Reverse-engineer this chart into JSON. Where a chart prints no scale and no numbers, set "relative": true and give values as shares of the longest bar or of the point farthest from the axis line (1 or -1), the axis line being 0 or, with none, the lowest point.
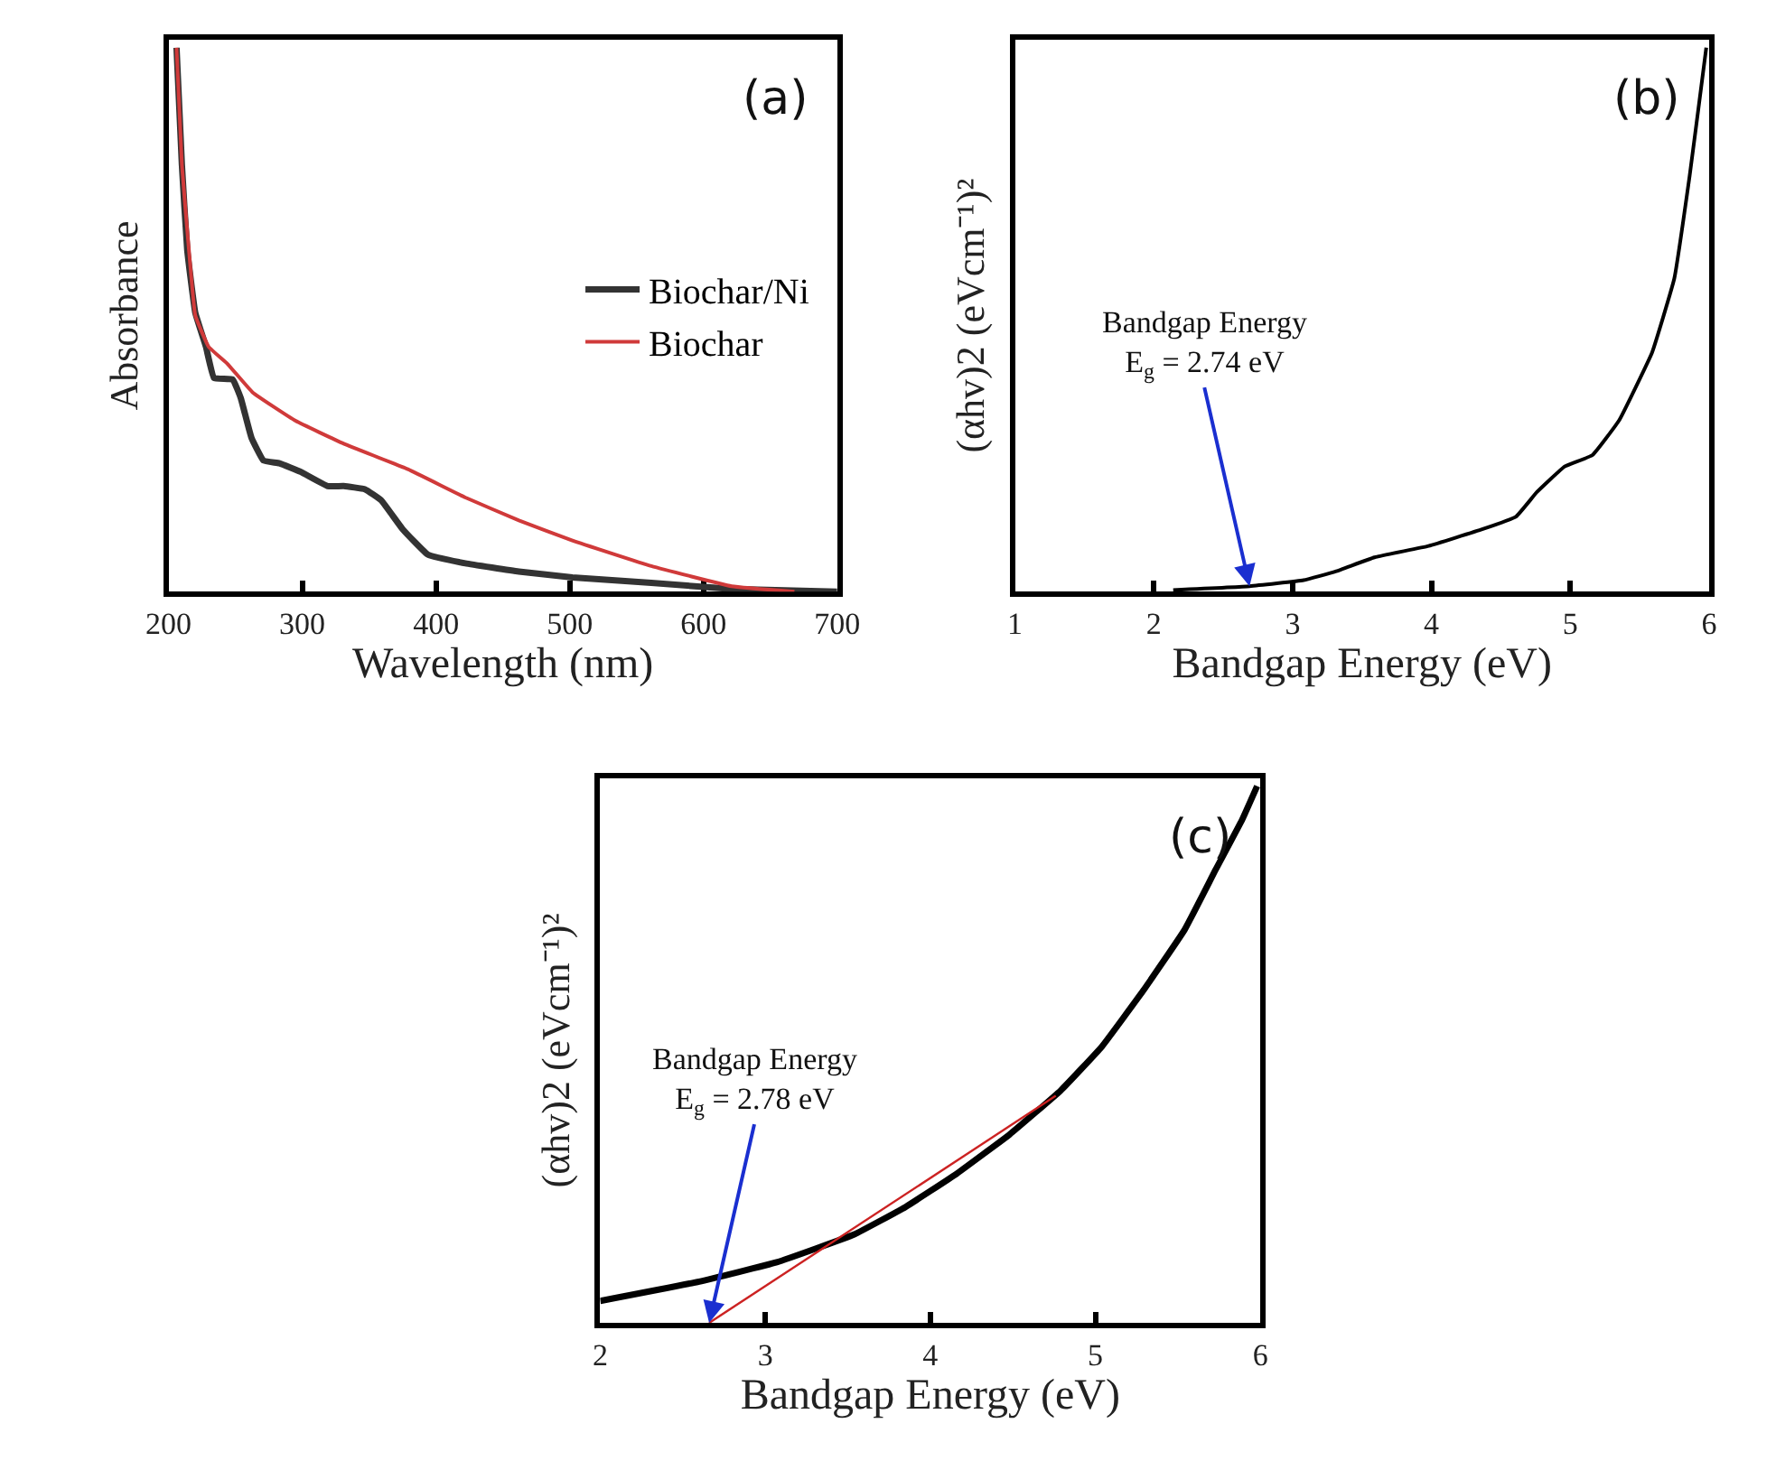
{
  "chart_data": [
    {
      "type": "line",
      "xlabel": "Wavelength (nm)",
      "ylabel": "Absorbance",
      "relative": true,
      "xlim": [
        200,
        700
      ],
      "xticks": [
        200,
        300,
        400,
        500,
        600,
        700
      ],
      "legend": "right",
      "annotations": [
        "(a)"
      ],
      "series": [
        {
          "name": "Biochar/Ni",
          "color": "#333333",
          "x": [
            206,
            210,
            214,
            220,
            228,
            234,
            248,
            254,
            262,
            271,
            283,
            299,
            319,
            331,
            347,
            359,
            375,
            394,
            422,
            462,
            502,
            561,
            621,
            700
          ],
          "values": [
            1.0,
            0.785,
            0.628,
            0.513,
            0.45,
            0.393,
            0.39,
            0.356,
            0.283,
            0.241,
            0.236,
            0.22,
            0.194,
            0.194,
            0.188,
            0.168,
            0.115,
            0.068,
            0.052,
            0.037,
            0.026,
            0.016,
            0.005,
            0
          ]
        },
        {
          "name": "Biochar",
          "color": "#d03a3a",
          "x": [
            206,
            210,
            216,
            220,
            230,
            244,
            263,
            295,
            331,
            379,
            422,
            462,
            502,
            561,
            621,
            668
          ],
          "values": [
            1.0,
            0.785,
            0.607,
            0.508,
            0.45,
            0.419,
            0.366,
            0.314,
            0.272,
            0.225,
            0.173,
            0.131,
            0.094,
            0.047,
            0.01,
            0
          ]
        }
      ]
    },
    {
      "type": "line",
      "xlabel": "Bandgap Energy (eV)",
      "ylabel": "(αhv)2 (eVcm⁻¹)²",
      "relative": true,
      "xlim": [
        1,
        6
      ],
      "xticks": [
        1,
        2,
        3,
        4,
        5,
        6
      ],
      "annotations": [
        "(b)",
        {
          "text": "Bandgap Energy\nE$_{g}$ = 2.74 eV",
          "x": 2.69,
          "y": 0.01
        }
      ],
      "series": [
        {
          "color": "#000000",
          "x": [
            2.14,
            2.69,
            3.08,
            3.31,
            3.59,
            3.98,
            4.37,
            4.61,
            4.76,
            4.96,
            5.16,
            5.35,
            5.59,
            5.75,
            5.86,
            5.94,
            5.98
          ],
          "values": [
            0.003,
            0.01,
            0.021,
            0.037,
            0.063,
            0.084,
            0.115,
            0.138,
            0.183,
            0.23,
            0.251,
            0.314,
            0.44,
            0.576,
            0.764,
            0.921,
            1.0
          ]
        }
      ]
    },
    {
      "type": "line",
      "xlabel": "Bandgap Energy (eV)",
      "ylabel": "(αhv)2 (eVcm⁻¹)²",
      "relative": true,
      "xlim": [
        2,
        6
      ],
      "xticks": [
        2,
        3,
        4,
        5,
        6
      ],
      "annotations": [
        "(c)",
        {
          "text": "Bandgap Energy\nE$_{g}$ = 2.78 eV",
          "x": 2.66,
          "y": 0
        }
      ],
      "series": [
        {
          "color": "#000000",
          "x": [
            2.0,
            2.6,
            3.07,
            3.54,
            3.85,
            4.16,
            4.48,
            4.79,
            5.04,
            5.29,
            5.54,
            5.73,
            5.89,
            5.98
          ],
          "values": [
            0.041,
            0.077,
            0.113,
            0.165,
            0.216,
            0.278,
            0.351,
            0.433,
            0.515,
            0.619,
            0.732,
            0.845,
            0.938,
            1.0
          ]
        },
        {
          "type": "line",
          "color": "#cc2222",
          "x": [
            2.66,
            4.76
          ],
          "values": [
            0,
            0.423
          ]
        }
      ]
    }
  ]
}
